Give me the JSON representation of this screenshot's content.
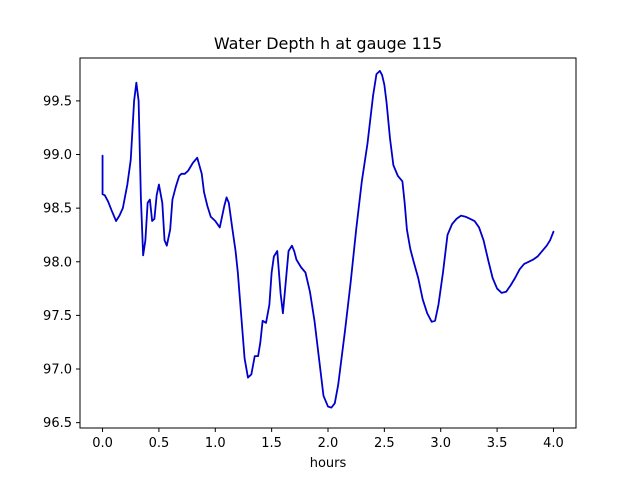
{
  "chart_data": {
    "type": "line",
    "title": "Water Depth h at gauge 115",
    "xlabel": "hours",
    "ylabel": "",
    "xlim": [
      -0.2,
      4.2
    ],
    "ylim": [
      96.45,
      99.9
    ],
    "xticks": [
      0.0,
      0.5,
      1.0,
      1.5,
      2.0,
      2.5,
      3.0,
      3.5,
      4.0
    ],
    "xtick_labels": [
      "0.0",
      "0.5",
      "1.0",
      "1.5",
      "2.0",
      "2.5",
      "3.0",
      "3.5",
      "4.0"
    ],
    "yticks": [
      96.5,
      97.0,
      97.5,
      98.0,
      98.5,
      99.0,
      99.5
    ],
    "ytick_labels": [
      "96.5",
      "97.0",
      "97.5",
      "98.0",
      "98.5",
      "99.0",
      "99.5"
    ],
    "grid": false,
    "line_color": "#0000cc",
    "series": [
      {
        "x": [
          0.0,
          0.0,
          0.02,
          0.05,
          0.08,
          0.12,
          0.15,
          0.18,
          0.22,
          0.25,
          0.28,
          0.3,
          0.32,
          0.34,
          0.36,
          0.38,
          0.4,
          0.42,
          0.44,
          0.46,
          0.48,
          0.5,
          0.53,
          0.55,
          0.57,
          0.6,
          0.62,
          0.65,
          0.68,
          0.7,
          0.73,
          0.76,
          0.8,
          0.84,
          0.88,
          0.9,
          0.93,
          0.96,
          1.0,
          1.04,
          1.08,
          1.1,
          1.12,
          1.15,
          1.18,
          1.2,
          1.23,
          1.26,
          1.29,
          1.32,
          1.35,
          1.38,
          1.4,
          1.42,
          1.45,
          1.48,
          1.5,
          1.52,
          1.55,
          1.58,
          1.6,
          1.62,
          1.65,
          1.68,
          1.7,
          1.72,
          1.76,
          1.8,
          1.84,
          1.88,
          1.92,
          1.96,
          2.0,
          2.03,
          2.06,
          2.09,
          2.12,
          2.15,
          2.2,
          2.25,
          2.3,
          2.35,
          2.4,
          2.43,
          2.46,
          2.48,
          2.5,
          2.52,
          2.55,
          2.58,
          2.62,
          2.66,
          2.68,
          2.7,
          2.73,
          2.76,
          2.8,
          2.84,
          2.88,
          2.92,
          2.95,
          2.98,
          3.02,
          3.06,
          3.1,
          3.14,
          3.18,
          3.22,
          3.26,
          3.3,
          3.34,
          3.38,
          3.42,
          3.46,
          3.5,
          3.54,
          3.58,
          3.62,
          3.66,
          3.7,
          3.74,
          3.78,
          3.82,
          3.86,
          3.9,
          3.94,
          3.97,
          4.0
        ],
        "values": [
          98.99,
          98.63,
          98.62,
          98.56,
          98.48,
          98.38,
          98.43,
          98.5,
          98.72,
          98.95,
          99.5,
          99.67,
          99.5,
          98.6,
          98.06,
          98.2,
          98.55,
          98.58,
          98.38,
          98.4,
          98.62,
          98.72,
          98.55,
          98.2,
          98.15,
          98.3,
          98.58,
          98.7,
          98.8,
          98.82,
          98.82,
          98.85,
          98.92,
          98.97,
          98.82,
          98.65,
          98.52,
          98.42,
          98.38,
          98.32,
          98.52,
          98.6,
          98.55,
          98.32,
          98.1,
          97.9,
          97.5,
          97.1,
          96.92,
          96.95,
          97.12,
          97.12,
          97.25,
          97.45,
          97.43,
          97.6,
          97.9,
          98.05,
          98.1,
          97.7,
          97.52,
          97.75,
          98.1,
          98.15,
          98.1,
          98.02,
          97.95,
          97.9,
          97.72,
          97.45,
          97.1,
          96.75,
          96.65,
          96.64,
          96.68,
          96.85,
          97.1,
          97.35,
          97.8,
          98.3,
          98.75,
          99.1,
          99.55,
          99.75,
          99.78,
          99.74,
          99.65,
          99.48,
          99.15,
          98.9,
          98.8,
          98.75,
          98.55,
          98.3,
          98.12,
          98.0,
          97.85,
          97.65,
          97.52,
          97.44,
          97.45,
          97.6,
          97.9,
          98.25,
          98.35,
          98.4,
          98.43,
          98.42,
          98.4,
          98.38,
          98.32,
          98.2,
          98.02,
          97.85,
          97.75,
          97.71,
          97.72,
          97.78,
          97.85,
          97.93,
          97.98,
          98.0,
          98.02,
          98.05,
          98.1,
          98.15,
          98.2,
          98.28
        ]
      }
    ]
  }
}
